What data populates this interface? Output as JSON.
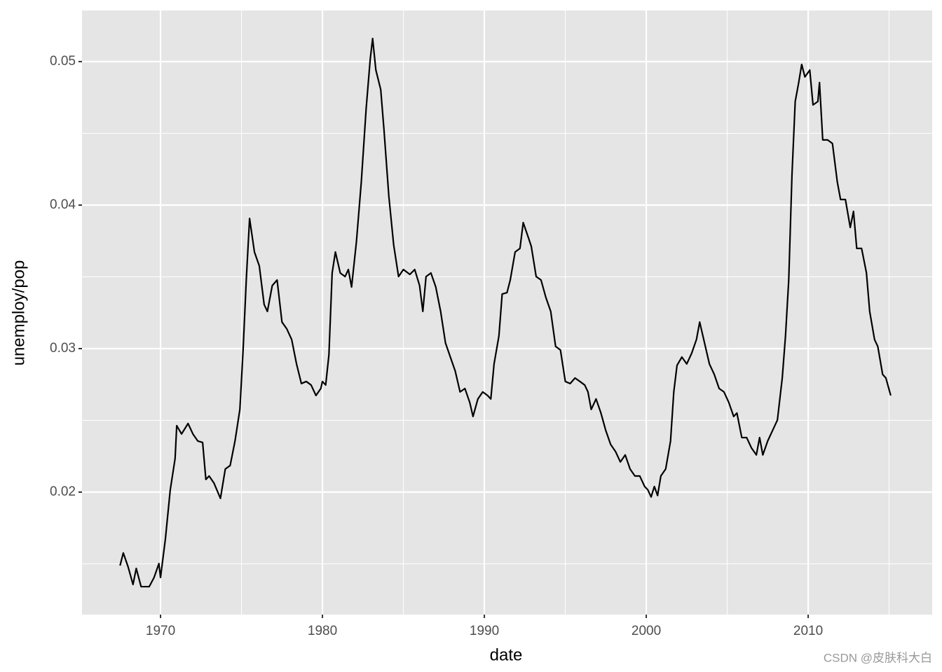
{
  "chart_data": {
    "type": "line",
    "x_label": "date",
    "y_label": "unemploy/pop",
    "watermark": "CSDN @皮肤科大白",
    "xlim": [
      1965.15,
      2017.66
    ],
    "ylim": [
      0.011463,
      0.05356
    ],
    "xticks": [
      1970,
      1980,
      1990,
      2000,
      2010
    ],
    "yticks": [
      0.02,
      0.03,
      0.04,
      0.05
    ],
    "xminor": [
      1975,
      1985,
      1995,
      2005,
      2015
    ],
    "yminor": [
      0.015,
      0.025,
      0.035,
      0.045
    ],
    "grid": true,
    "panel_color": "#e5e5e5",
    "grid_color": "#ffffff",
    "series": [
      {
        "color": "#000000",
        "x": [
          1967.5,
          1967.7,
          1968.0,
          1968.3,
          1968.5,
          1968.8,
          1969.3,
          1969.6,
          1969.9,
          1970.0,
          1970.3,
          1970.6,
          1970.9,
          1971.0,
          1971.3,
          1971.7,
          1972.0,
          1972.3,
          1972.6,
          1972.8,
          1973.0,
          1973.3,
          1973.7,
          1974.0,
          1974.3,
          1974.6,
          1974.9,
          1975.1,
          1975.3,
          1975.5,
          1975.8,
          1976.1,
          1976.4,
          1976.6,
          1976.9,
          1977.2,
          1977.5,
          1977.8,
          1978.1,
          1978.4,
          1978.7,
          1979.0,
          1979.3,
          1979.6,
          1979.9,
          1980.0,
          1980.2,
          1980.4,
          1980.6,
          1980.8,
          1981.1,
          1981.4,
          1981.6,
          1981.8,
          1982.1,
          1982.4,
          1982.7,
          1982.95,
          1983.1,
          1983.3,
          1983.6,
          1983.8,
          1984.1,
          1984.4,
          1984.7,
          1985.0,
          1985.4,
          1985.7,
          1986.0,
          1986.2,
          1986.4,
          1986.7,
          1987.0,
          1987.3,
          1987.6,
          1987.9,
          1988.2,
          1988.5,
          1988.8,
          1989.1,
          1989.3,
          1989.6,
          1989.9,
          1990.2,
          1990.4,
          1990.6,
          1990.9,
          1991.1,
          1991.4,
          1991.6,
          1991.9,
          1992.2,
          1992.4,
          1992.7,
          1992.9,
          1993.2,
          1993.5,
          1993.8,
          1994.1,
          1994.4,
          1994.7,
          1995.0,
          1995.3,
          1995.6,
          1995.9,
          1996.2,
          1996.4,
          1996.6,
          1996.9,
          1997.2,
          1997.5,
          1997.8,
          1998.1,
          1998.4,
          1998.7,
          1999.0,
          1999.3,
          1999.6,
          1999.9,
          2000.1,
          2000.3,
          2000.5,
          2000.7,
          2000.9,
          2001.2,
          2001.5,
          2001.7,
          2001.9,
          2002.2,
          2002.5,
          2002.8,
          2003.1,
          2003.3,
          2003.6,
          2003.9,
          2004.2,
          2004.5,
          2004.8,
          2005.1,
          2005.4,
          2005.6,
          2005.9,
          2006.2,
          2006.5,
          2006.8,
          2007.0,
          2007.2,
          2007.5,
          2007.8,
          2008.1,
          2008.4,
          2008.6,
          2008.8,
          2009.0,
          2009.2,
          2009.4,
          2009.6,
          2009.8,
          2010.1,
          2010.3,
          2010.6,
          2010.7,
          2010.9,
          2011.2,
          2011.5,
          2011.8,
          2012.0,
          2012.3,
          2012.6,
          2012.8,
          2013.0,
          2013.3,
          2013.6,
          2013.8,
          2014.1,
          2014.3,
          2014.6,
          2014.8,
          2015.1
        ],
        "values": [
          0.01488,
          0.01576,
          0.01478,
          0.01356,
          0.01468,
          0.01341,
          0.01341,
          0.01405,
          0.01502,
          0.01405,
          0.01673,
          0.02015,
          0.02234,
          0.02463,
          0.02405,
          0.02478,
          0.02405,
          0.02356,
          0.02346,
          0.02088,
          0.02112,
          0.02063,
          0.01956,
          0.02161,
          0.02185,
          0.02356,
          0.02576,
          0.0299,
          0.03488,
          0.03907,
          0.03673,
          0.03576,
          0.03307,
          0.03259,
          0.03439,
          0.03478,
          0.03185,
          0.03137,
          0.03063,
          0.02893,
          0.02756,
          0.02771,
          0.02746,
          0.02673,
          0.02722,
          0.02771,
          0.02746,
          0.02956,
          0.03527,
          0.03673,
          0.03527,
          0.03502,
          0.03551,
          0.03429,
          0.03746,
          0.04161,
          0.04673,
          0.05015,
          0.05161,
          0.04941,
          0.04805,
          0.04527,
          0.04063,
          0.03722,
          0.03502,
          0.03551,
          0.03517,
          0.03551,
          0.03439,
          0.03259,
          0.03502,
          0.03527,
          0.03429,
          0.03259,
          0.03039,
          0.02941,
          0.02844,
          0.02698,
          0.02722,
          0.02624,
          0.02527,
          0.02649,
          0.02698,
          0.02673,
          0.02649,
          0.02893,
          0.03088,
          0.0338,
          0.0339,
          0.03478,
          0.03673,
          0.03698,
          0.03878,
          0.0378,
          0.03712,
          0.03502,
          0.03478,
          0.03356,
          0.03259,
          0.03015,
          0.0299,
          0.02771,
          0.02756,
          0.02795,
          0.02771,
          0.02746,
          0.02698,
          0.02576,
          0.02649,
          0.02551,
          0.02429,
          0.02332,
          0.02283,
          0.0221,
          0.02259,
          0.02161,
          0.02112,
          0.02112,
          0.02039,
          0.02015,
          0.01966,
          0.02039,
          0.01976,
          0.02112,
          0.02161,
          0.02356,
          0.02698,
          0.02883,
          0.02941,
          0.02893,
          0.02966,
          0.03063,
          0.03185,
          0.03039,
          0.02893,
          0.0282,
          0.02722,
          0.02698,
          0.02624,
          0.02527,
          0.02551,
          0.0238,
          0.0238,
          0.02307,
          0.02259,
          0.0238,
          0.02259,
          0.02356,
          0.02429,
          0.02502,
          0.02795,
          0.03088,
          0.03478,
          0.0421,
          0.04722,
          0.04844,
          0.0498,
          0.04893,
          0.04941,
          0.04698,
          0.04722,
          0.04854,
          0.04454,
          0.04454,
          0.04429,
          0.04161,
          0.04039,
          0.04039,
          0.03844,
          0.03956,
          0.03698,
          0.03698,
          0.03527,
          0.03259,
          0.03063,
          0.03015,
          0.0282,
          0.02795,
          0.02673
        ]
      }
    ]
  }
}
